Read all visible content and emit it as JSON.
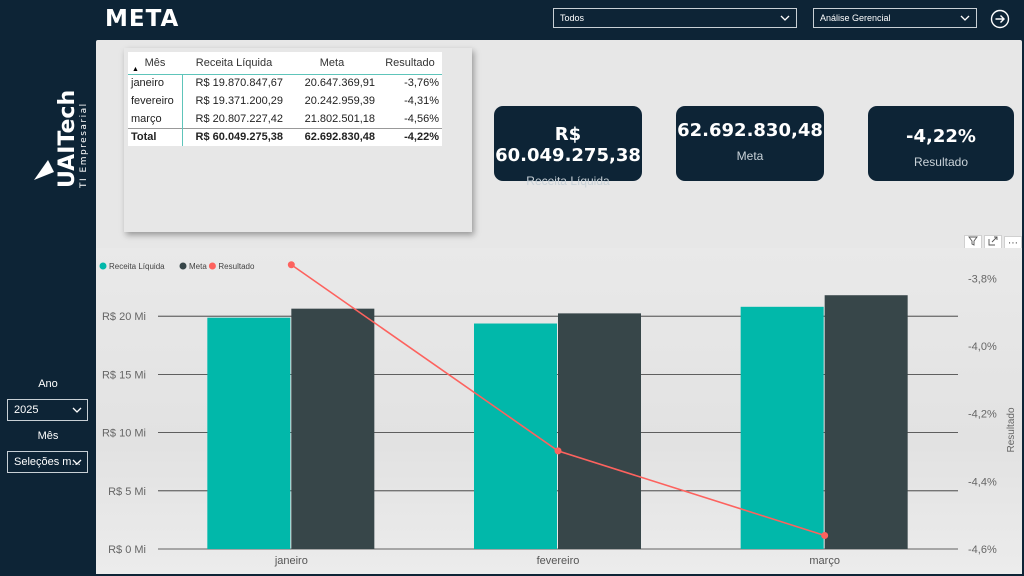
{
  "header": {
    "title": "META",
    "filter_todos": "Todos",
    "filter_analise": "Análise Gerencial"
  },
  "sidebar": {
    "logo_text": "UAITech",
    "logo_subtext": "TI Empresarial",
    "ano_label": "Ano",
    "ano_value": "2025",
    "mes_label": "Mês",
    "mes_value": "Seleções m..."
  },
  "table": {
    "headers": [
      "Mês",
      "Receita Líquida",
      "Meta",
      "Resultado"
    ],
    "rows": [
      {
        "mes": "janeiro",
        "receita": "R$ 19.870.847,67",
        "meta": "20.647.369,91",
        "resultado": "-3,76%"
      },
      {
        "mes": "fevereiro",
        "receita": "R$ 19.371.200,29",
        "meta": "20.242.959,39",
        "resultado": "-4,31%"
      },
      {
        "mes": "março",
        "receita": "R$ 20.807.227,42",
        "meta": "21.802.501,18",
        "resultado": "-4,56%"
      }
    ],
    "total": {
      "mes": "Total",
      "receita": "R$ 60.049.275,38",
      "meta": "62.692.830,48",
      "resultado": "-4,22%"
    }
  },
  "kpis": {
    "receita_value": "R$ 60.049.275,38",
    "receita_label": "Receita Líquida",
    "meta_value": "62.692.830,48",
    "meta_label": "Meta",
    "resultado_value": "-4,22%",
    "resultado_label": "Resultado"
  },
  "chart_data": {
    "type": "bar",
    "categories": [
      "janeiro",
      "fevereiro",
      "março"
    ],
    "series": [
      {
        "name": "Receita Líquida",
        "kind": "bar",
        "color": "#01b8aa",
        "values": [
          19870847.67,
          19371200.29,
          20807227.42
        ]
      },
      {
        "name": "Meta",
        "kind": "bar",
        "color": "#374649",
        "values": [
          20647369.91,
          20242959.39,
          21802501.18
        ]
      },
      {
        "name": "Resultado",
        "kind": "line",
        "axis": "right",
        "color": "#fd625e",
        "values": [
          -3.76,
          -4.31,
          -4.56
        ]
      }
    ],
    "left_axis": {
      "ylim": [
        0,
        25000000
      ],
      "ticks": [
        0,
        5000000,
        10000000,
        15000000,
        20000000
      ],
      "tick_labels": [
        "R$ 0 Mi",
        "R$ 5 Mi",
        "R$ 10 Mi",
        "R$ 15 Mi",
        "R$ 20 Mi"
      ]
    },
    "right_axis": {
      "ylim": [
        -4.6,
        -3.74
      ],
      "ticks": [
        -3.8,
        -4.0,
        -4.2,
        -4.4,
        -4.6
      ],
      "tick_labels": [
        "-3,8%",
        "-4,0%",
        "-4,2%",
        "-4,4%",
        "-4,6%"
      ],
      "label": "Resultado"
    },
    "legend": "top-left",
    "grid": true
  }
}
